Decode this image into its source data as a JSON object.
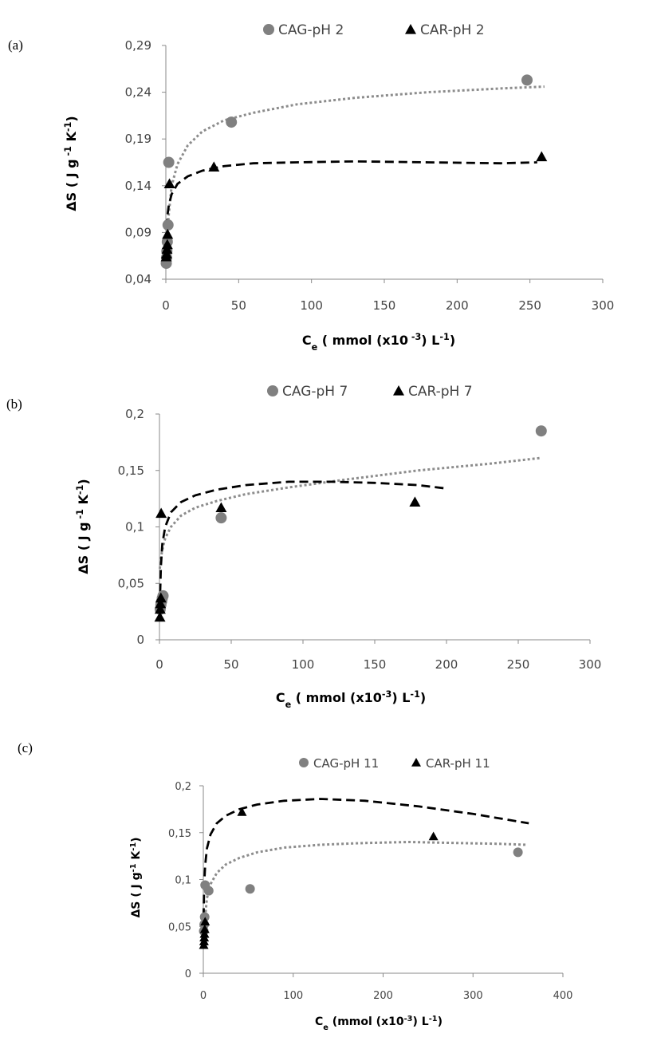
{
  "chart_data": [
    {
      "type": "scatter",
      "panel_label": "(a)",
      "xlabel": {
        "main": "C",
        "sub": "e",
        "rest": " ( mmol (x10",
        "sup": " -3",
        "tail": ") L",
        "sup2": "-1",
        "end": ")"
      },
      "ylabel": {
        "main": "ΔS ( J g",
        "sup1": " -1",
        "mid": " K",
        "sup2": "-1",
        "end": ")"
      },
      "xlim": [
        0,
        300
      ],
      "ylim": [
        0.04,
        0.29
      ],
      "xticks": [
        "0",
        "50",
        "100",
        "150",
        "200",
        "250",
        "300"
      ],
      "yticks": [
        "0,04",
        "0,09",
        "0,14",
        "0,19",
        "0,24",
        "0,29"
      ],
      "legend": [
        "CAG-pH 2",
        "CAR-pH 2"
      ],
      "series": [
        {
          "name": "CAG-pH 2",
          "marker": "circle",
          "color": "#808080",
          "x": [
            0.3,
            0.5,
            0.7,
            1.0,
            1.5,
            2,
            45,
            248
          ],
          "y": [
            0.057,
            0.063,
            0.07,
            0.08,
            0.098,
            0.165,
            0.208,
            0.253
          ]
        },
        {
          "name": "CAR-pH 2",
          "marker": "triangle",
          "color": "#000000",
          "x": [
            0.3,
            0.5,
            0.8,
            1.0,
            1.2,
            2.5,
            33,
            258
          ],
          "y": [
            0.064,
            0.067,
            0.072,
            0.077,
            0.088,
            0.142,
            0.16,
            0.171
          ]
        }
      ],
      "trendlines": [
        {
          "name": "CAG-pH 2 trend",
          "style": "dotted",
          "color": "#8c8c8c",
          "x": [
            0.5,
            1,
            2,
            4,
            8,
            15,
            25,
            40,
            60,
            90,
            130,
            180,
            230,
            260
          ],
          "y": [
            0.062,
            0.085,
            0.11,
            0.14,
            0.163,
            0.183,
            0.198,
            0.21,
            0.218,
            0.227,
            0.234,
            0.24,
            0.244,
            0.246
          ]
        },
        {
          "name": "CAR-pH 2 trend",
          "style": "dashed",
          "color": "#000000",
          "x": [
            0.5,
            1,
            2,
            4,
            8,
            15,
            25,
            40,
            60,
            90,
            130,
            180,
            230,
            255
          ],
          "y": [
            0.095,
            0.107,
            0.119,
            0.131,
            0.142,
            0.15,
            0.156,
            0.161,
            0.164,
            0.165,
            0.166,
            0.165,
            0.164,
            0.165
          ]
        }
      ]
    },
    {
      "type": "scatter",
      "panel_label": "(b)",
      "xlabel": {
        "main": "C",
        "sub": "e",
        "rest": " ( mmol (x10",
        "sup": "-3",
        "tail": ") L",
        "sup2": "-1",
        "end": ")"
      },
      "ylabel": {
        "main": "ΔS ( J g",
        "sup1": " -1",
        "mid": " K",
        "sup2": "-1",
        "end": ")"
      },
      "xlim": [
        0,
        300
      ],
      "ylim": [
        0,
        0.2
      ],
      "xticks": [
        "0",
        "50",
        "100",
        "150",
        "200",
        "250",
        "300"
      ],
      "yticks": [
        "0",
        "0,05",
        "0,1",
        "0,15",
        "0,2"
      ],
      "legend": [
        "CAG-pH 7",
        "CAR-pH 7"
      ],
      "series": [
        {
          "name": "CAG-pH 7",
          "marker": "circle",
          "color": "#808080",
          "x": [
            0.5,
            1,
            1.5,
            2,
            2.5,
            43,
            266
          ],
          "y": [
            0.027,
            0.031,
            0.034,
            0.037,
            0.039,
            0.108,
            0.185
          ]
        },
        {
          "name": "CAR-pH 7",
          "marker": "triangle",
          "color": "#000000",
          "x": [
            0.3,
            0.5,
            0.7,
            1.0,
            1.2,
            43,
            178
          ],
          "y": [
            0.02,
            0.027,
            0.032,
            0.037,
            0.112,
            0.117,
            0.122
          ]
        }
      ],
      "trendlines": [
        {
          "name": "CAG-pH 7 trend",
          "style": "dotted",
          "color": "#8c8c8c",
          "x": [
            0.2,
            1,
            2,
            4,
            8,
            15,
            25,
            40,
            60,
            90,
            130,
            180,
            230,
            265
          ],
          "y": [
            0.063,
            0.072,
            0.08,
            0.09,
            0.1,
            0.11,
            0.117,
            0.123,
            0.129,
            0.135,
            0.142,
            0.15,
            0.156,
            0.161
          ]
        },
        {
          "name": "CAR-pH 7 trend",
          "style": "dashed",
          "color": "#000000",
          "x": [
            0.2,
            1,
            2,
            4,
            8,
            15,
            25,
            40,
            60,
            90,
            120,
            150,
            180,
            200
          ],
          "y": [
            0.03,
            0.065,
            0.085,
            0.1,
            0.113,
            0.122,
            0.128,
            0.133,
            0.137,
            0.14,
            0.14,
            0.139,
            0.137,
            0.134
          ]
        }
      ]
    },
    {
      "type": "scatter",
      "panel_label": "(c)",
      "xlabel": {
        "main": "C",
        "sub": "e",
        "rest": " (mmol (x10",
        "sup": "-3",
        "tail": ") L",
        "sup2": "-1",
        "end": ")"
      },
      "ylabel": {
        "main": "ΔS ( J g",
        "sup1": "-1",
        "mid": " K",
        "sup2": "-1",
        "end": ")"
      },
      "xlim": [
        0,
        400
      ],
      "ylim": [
        0,
        0.2
      ],
      "xticks": [
        "0",
        "100",
        "200",
        "300",
        "400"
      ],
      "yticks": [
        "0",
        "0,05",
        "0,1",
        "0,15",
        "0,2"
      ],
      "legend": [
        "CAG-pH 11",
        "CAR-pH 11"
      ],
      "series": [
        {
          "name": "CAG-pH 11",
          "marker": "circle",
          "color": "#808080",
          "x": [
            0.5,
            1,
            1.5,
            2,
            6,
            52,
            350
          ],
          "y": [
            0.045,
            0.052,
            0.06,
            0.094,
            0.088,
            0.09,
            0.129
          ]
        },
        {
          "name": "CAR-pH 11",
          "marker": "triangle",
          "color": "#000000",
          "x": [
            0.5,
            0.8,
            1.0,
            1.3,
            1.6,
            2.0,
            43,
            256
          ],
          "y": [
            0.03,
            0.034,
            0.038,
            0.042,
            0.047,
            0.055,
            0.172,
            0.146
          ]
        }
      ],
      "trendlines": [
        {
          "name": "CAG-pH 11 trend",
          "style": "dotted",
          "color": "#8c8c8c",
          "x": [
            2,
            4,
            8,
            15,
            25,
            40,
            60,
            90,
            130,
            180,
            230,
            280,
            330,
            360
          ],
          "y": [
            0.06,
            0.08,
            0.095,
            0.107,
            0.116,
            0.123,
            0.129,
            0.134,
            0.137,
            0.139,
            0.14,
            0.139,
            0.138,
            0.137
          ]
        },
        {
          "name": "CAR-pH 11 trend",
          "style": "dashed",
          "color": "#000000",
          "x": [
            0.3,
            1,
            2,
            4,
            8,
            15,
            25,
            40,
            60,
            90,
            130,
            180,
            240,
            300,
            362
          ],
          "y": [
            0.06,
            0.095,
            0.115,
            0.133,
            0.148,
            0.16,
            0.168,
            0.175,
            0.18,
            0.184,
            0.186,
            0.184,
            0.178,
            0.17,
            0.16
          ]
        }
      ]
    }
  ]
}
